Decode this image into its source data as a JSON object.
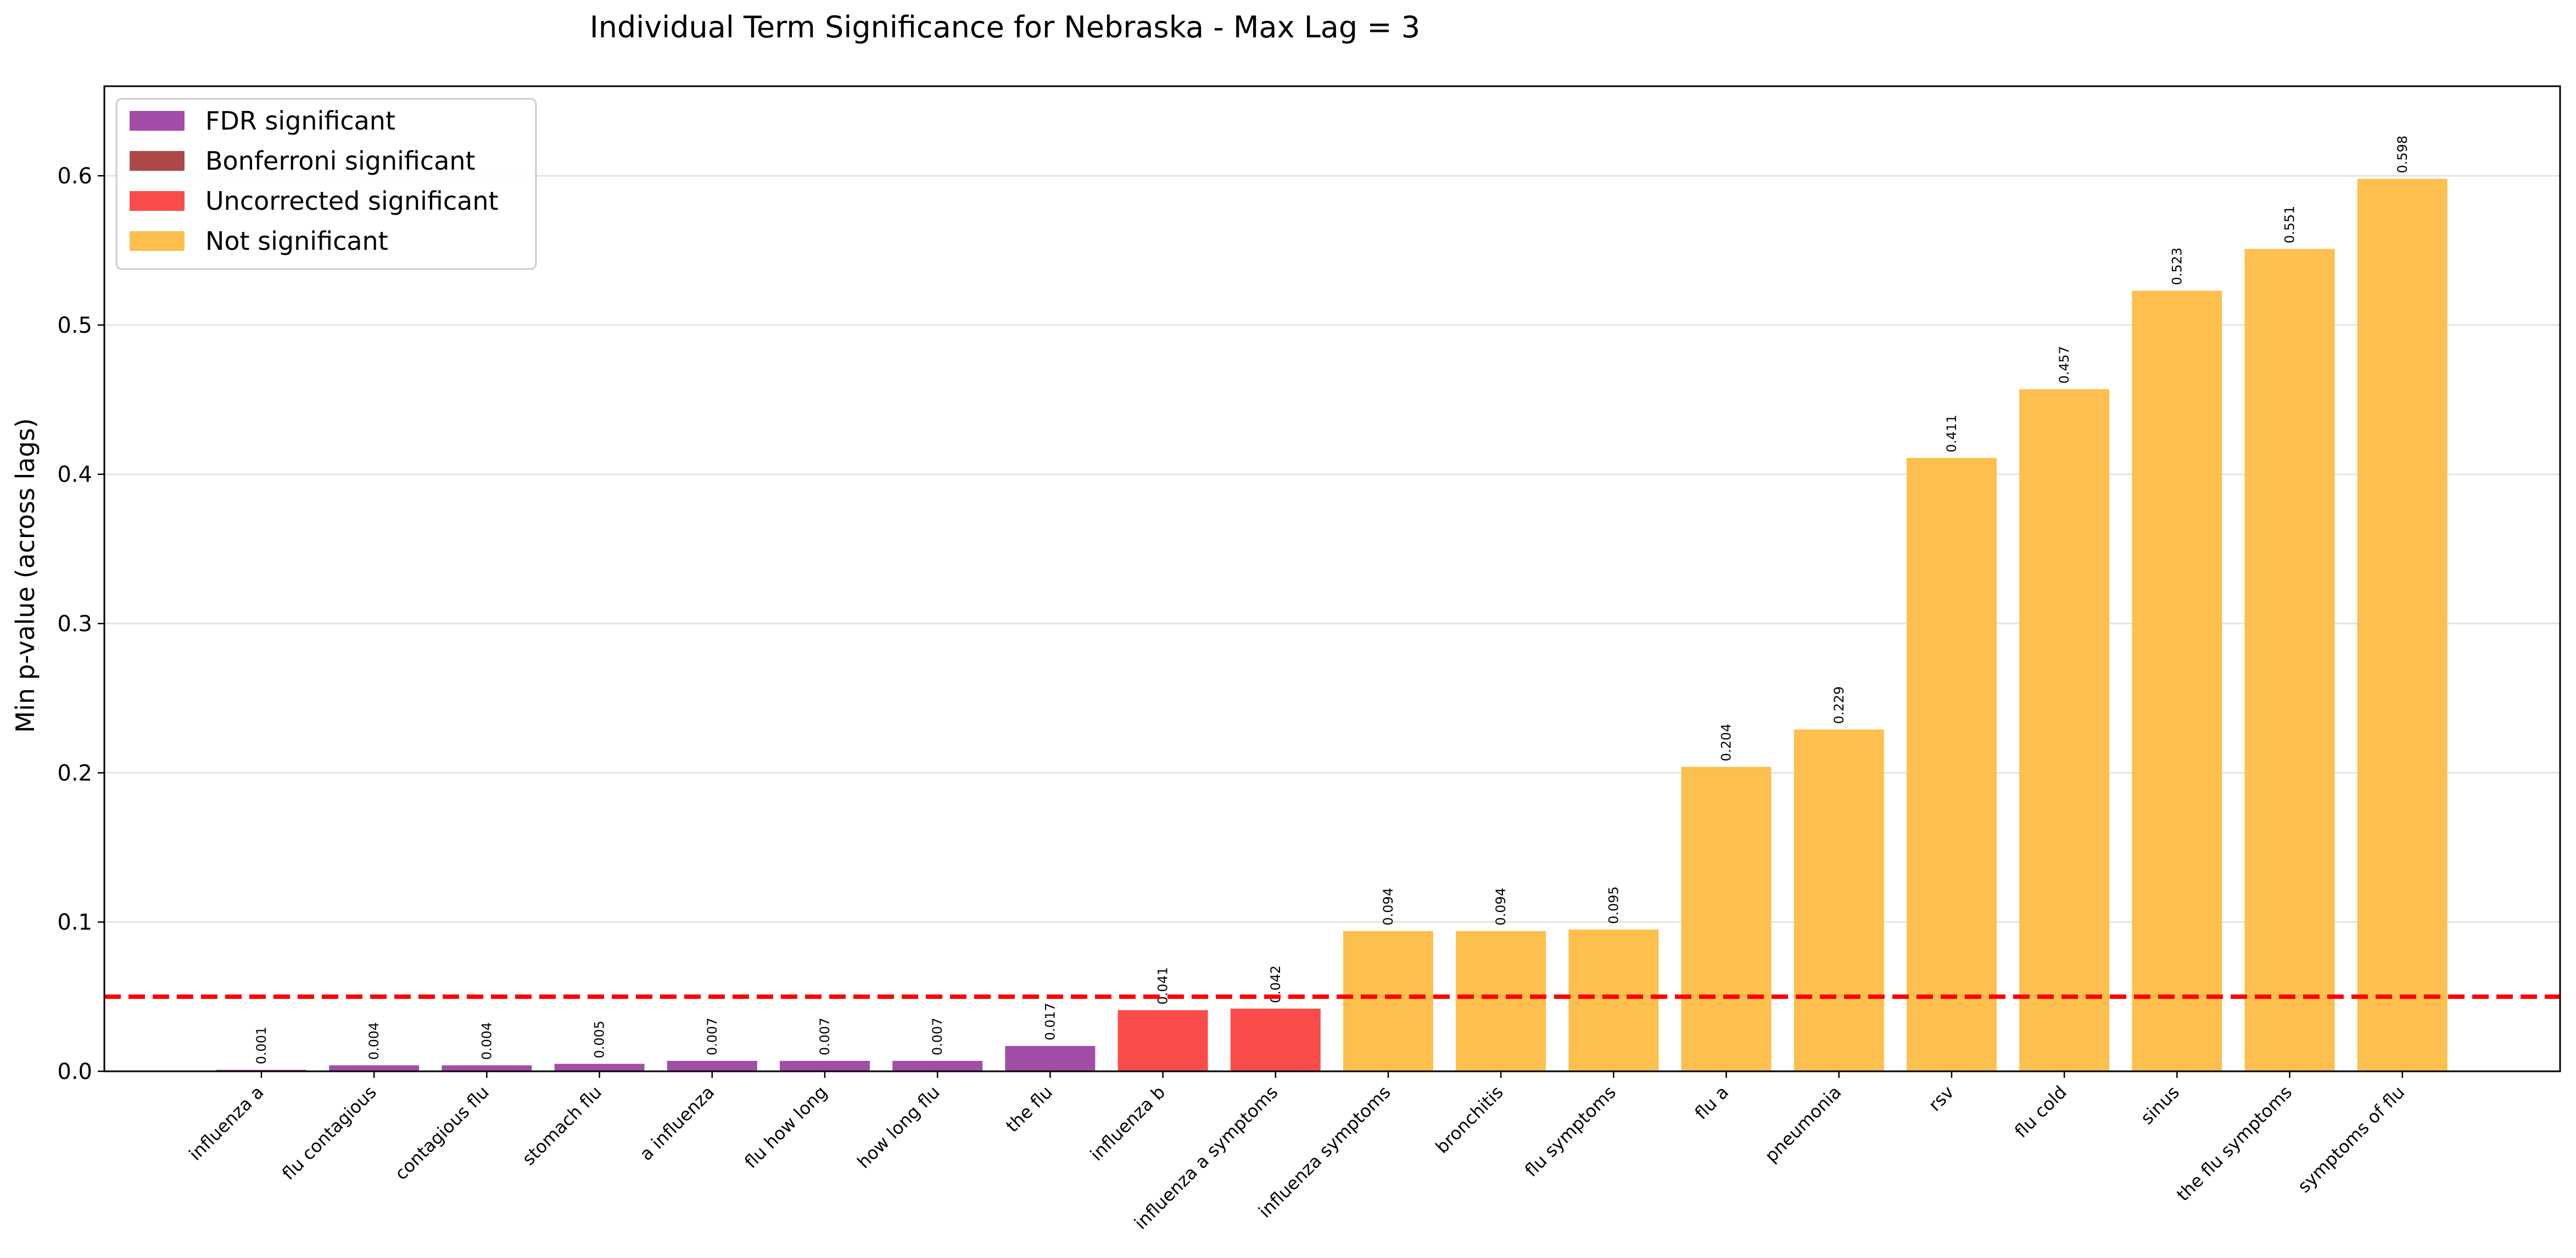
{
  "chart_data": {
    "type": "bar",
    "title": "Individual Term Significance for Nebraska - Max Lag = 3",
    "xlabel": "",
    "ylabel": "Min p-value (across lags)",
    "ylim": [
      0,
      0.66
    ],
    "yticks": [
      0.0,
      0.1,
      0.2,
      0.3,
      0.4,
      0.5,
      0.6
    ],
    "ytick_labels": [
      "0.0",
      "0.1",
      "0.2",
      "0.3",
      "0.4",
      "0.5",
      "0.6"
    ],
    "grid": "horizontal",
    "threshold": {
      "value": 0.05,
      "color": "#ff0000",
      "style": "dashed"
    },
    "legend_position": "top-left",
    "legend": [
      {
        "label": "FDR significant",
        "color": "#a24da8"
      },
      {
        "label": "Bonferroni significant",
        "color": "#ad4848"
      },
      {
        "label": "Uncorrected significant",
        "color": "#fc4b4b"
      },
      {
        "label": "Not significant",
        "color": "#fdc04e"
      }
    ],
    "categories": [
      "influenza a",
      "flu contagious",
      "contagious flu",
      "stomach flu",
      "a influenza",
      "flu how long",
      "how long flu",
      "the flu",
      "influenza b",
      "influenza a symptoms",
      "influenza symptoms",
      "bronchitis",
      "flu symptoms",
      "flu a",
      "pneumonia",
      "rsv",
      "flu cold",
      "sinus",
      "the flu symptoms",
      "symptoms of flu"
    ],
    "values": [
      0.001,
      0.004,
      0.004,
      0.005,
      0.007,
      0.007,
      0.007,
      0.017,
      0.041,
      0.042,
      0.094,
      0.094,
      0.095,
      0.204,
      0.229,
      0.411,
      0.457,
      0.523,
      0.551,
      0.598
    ],
    "value_labels": [
      "0.001",
      "0.004",
      "0.004",
      "0.005",
      "0.007",
      "0.007",
      "0.007",
      "0.017",
      "0.041",
      "0.042",
      "0.094",
      "0.094",
      "0.095",
      "0.204",
      "0.229",
      "0.411",
      "0.457",
      "0.523",
      "0.551",
      "0.598"
    ],
    "bar_groups": [
      0,
      0,
      0,
      0,
      0,
      0,
      0,
      0,
      2,
      2,
      3,
      3,
      3,
      3,
      3,
      3,
      3,
      3,
      3,
      3
    ]
  }
}
